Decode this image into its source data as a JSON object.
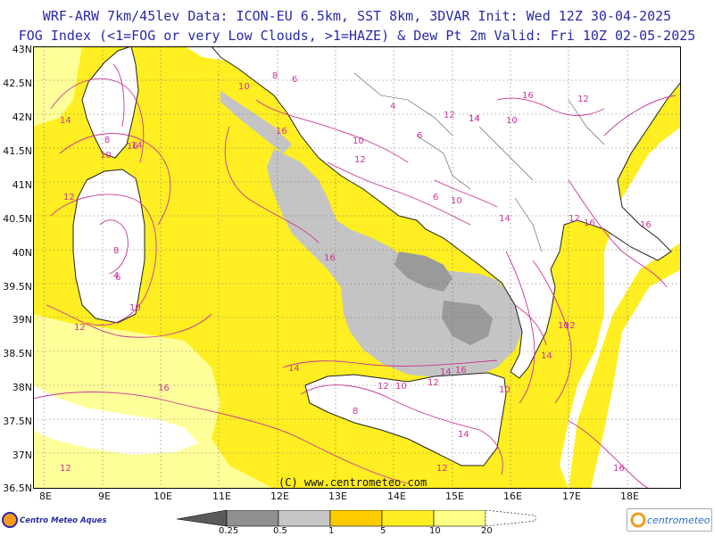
{
  "header": {
    "line1": "WRF-ARW 7km/45lev  Data: ICON-EU 6.5km, SST 8km, 3DVAR  Init: Wed 12Z 30-04-2025",
    "line2": "FOG Index (<1=FOG or very Low Clouds, >1=HAZE) & Dew Pt 2m  Valid: Fri 10Z 02-05-2025"
  },
  "lat_labels": [
    "43N",
    "42.5N",
    "42N",
    "41.5N",
    "41N",
    "40.5N",
    "40N",
    "39.5N",
    "39N",
    "38.5N",
    "38N",
    "37.5N",
    "37N",
    "36.5N"
  ],
  "lon_labels": [
    "8E",
    "9E",
    "10E",
    "11E",
    "12E",
    "13E",
    "14E",
    "15E",
    "16E",
    "17E",
    "18E"
  ],
  "credit": "(C) www.centrometeo.com",
  "logos": {
    "left": "Centro Meteo Aquesio",
    "right": "centrometeo"
  },
  "legend": {
    "ticks": [
      "0.25",
      "0.5",
      "1",
      "5",
      "10",
      "20"
    ],
    "colors": [
      "#5a5a5a",
      "#909090",
      "#c6c6c6",
      "#ffcc00",
      "#ffee22",
      "#ffff88",
      "#ffffff"
    ]
  },
  "contour_labels": [
    "10",
    "8",
    "6",
    "12",
    "14",
    "16",
    "10",
    "12",
    "14",
    "16",
    "8",
    "10",
    "4",
    "12",
    "14",
    "16",
    "10",
    "6",
    "4",
    "10",
    "12",
    "14",
    "12",
    "16",
    "12",
    "10",
    "8",
    "6",
    "14",
    "16",
    "10",
    "12",
    "16",
    "14",
    "12",
    "10",
    "6",
    "8",
    "16",
    "14",
    "12",
    "16",
    "14",
    "16",
    "10",
    "12",
    "14",
    "12"
  ],
  "colors": {
    "yellow": "#ffee22",
    "pale_yellow": "#ffff99",
    "gray_light": "#c4c4c4",
    "gray_dark": "#9a9a9a",
    "contour": "#cc3399",
    "border": "#222222",
    "title": "#2a2aa8"
  }
}
